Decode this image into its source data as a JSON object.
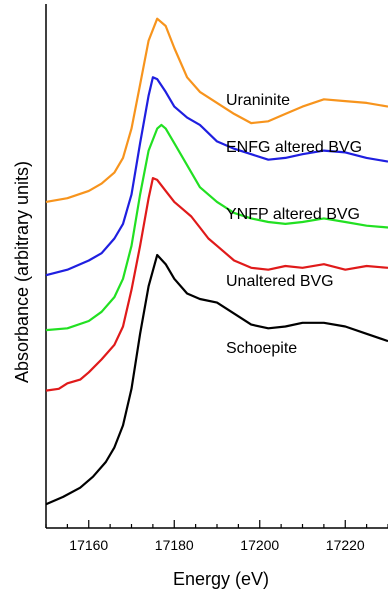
{
  "chart_data": {
    "type": "line",
    "xlabel": "Energy (eV)",
    "ylabel": "Absorbance (arbitrary units)",
    "xlim": [
      17150,
      17230
    ],
    "xticks": [
      17160,
      17180,
      17200,
      17220
    ],
    "ytick_labels": "none",
    "grid": false,
    "legend": "inline labels",
    "series": [
      {
        "name": "Uraninite",
        "color": "#f7941d",
        "x": [
          17150,
          17155,
          17160,
          17163,
          17166,
          17168,
          17170,
          17172,
          17174,
          17176,
          17178,
          17180,
          17183,
          17186,
          17190,
          17194,
          17198,
          17202,
          17206,
          17210,
          17215,
          17220,
          17225,
          17230
        ],
        "y": [
          4.4,
          4.5,
          4.7,
          4.9,
          5.2,
          5.6,
          6.4,
          7.6,
          8.8,
          9.4,
          9.2,
          8.6,
          7.8,
          7.4,
          7.1,
          6.8,
          6.55,
          6.6,
          6.8,
          7.0,
          7.2,
          7.15,
          7.1,
          7.0
        ]
      },
      {
        "name": "ENFG altered BVG",
        "color": "#1f1fe0",
        "x": [
          17150,
          17155,
          17160,
          17163,
          17166,
          17168,
          17170,
          17172,
          17174,
          17175,
          17176,
          17178,
          17180,
          17183,
          17186,
          17190,
          17194,
          17198,
          17202,
          17206,
          17210,
          17215,
          17220,
          17225,
          17230
        ],
        "y": [
          2.4,
          2.55,
          2.8,
          3.0,
          3.4,
          3.8,
          4.6,
          6.0,
          7.3,
          7.8,
          7.75,
          7.4,
          7.0,
          6.7,
          6.5,
          6.05,
          5.85,
          5.7,
          5.55,
          5.6,
          5.7,
          5.8,
          5.75,
          5.6,
          5.5
        ]
      },
      {
        "name": "YNFP altered BVG",
        "color": "#22e022",
        "x": [
          17150,
          17155,
          17160,
          17163,
          17166,
          17168,
          17170,
          17172,
          17174,
          17176,
          17177,
          17178,
          17180,
          17183,
          17186,
          17190,
          17194,
          17198,
          17202,
          17206,
          17210,
          17215,
          17220,
          17225,
          17230
        ],
        "y": [
          0.9,
          0.95,
          1.15,
          1.4,
          1.8,
          2.3,
          3.2,
          4.6,
          5.8,
          6.4,
          6.5,
          6.4,
          6.0,
          5.4,
          4.8,
          4.4,
          4.1,
          3.95,
          3.85,
          3.8,
          3.85,
          3.95,
          3.85,
          3.75,
          3.7
        ]
      },
      {
        "name": "Unaltered BVG",
        "color": "#e01a1a",
        "x": [
          17150,
          17153,
          17155,
          17158,
          17160,
          17163,
          17166,
          17168,
          17170,
          17172,
          17174,
          17175,
          17176,
          17178,
          17180,
          17182,
          17184,
          17186,
          17188,
          17190,
          17194,
          17198,
          17202,
          17206,
          17210,
          17215,
          17220,
          17225,
          17230
        ],
        "y": [
          -0.75,
          -0.7,
          -0.55,
          -0.45,
          -0.25,
          0.1,
          0.5,
          1.0,
          2.0,
          3.2,
          4.5,
          5.05,
          5.0,
          4.7,
          4.4,
          4.2,
          4.0,
          3.7,
          3.4,
          3.2,
          2.8,
          2.6,
          2.55,
          2.65,
          2.6,
          2.7,
          2.55,
          2.65,
          2.6
        ]
      },
      {
        "name": "Schoepite",
        "color": "#000000",
        "x": [
          17150,
          17154,
          17158,
          17161,
          17164,
          17166,
          17168,
          17170,
          17172,
          17174,
          17176,
          17178,
          17180,
          17183,
          17186,
          17190,
          17194,
          17198,
          17202,
          17206,
          17210,
          17215,
          17220,
          17225,
          17230
        ],
        "y": [
          -3.85,
          -3.65,
          -3.4,
          -3.1,
          -2.7,
          -2.3,
          -1.7,
          -0.7,
          0.8,
          2.1,
          2.95,
          2.7,
          2.3,
          1.9,
          1.75,
          1.65,
          1.35,
          1.05,
          0.95,
          1.0,
          1.1,
          1.1,
          1.0,
          0.8,
          0.6
        ]
      }
    ]
  }
}
